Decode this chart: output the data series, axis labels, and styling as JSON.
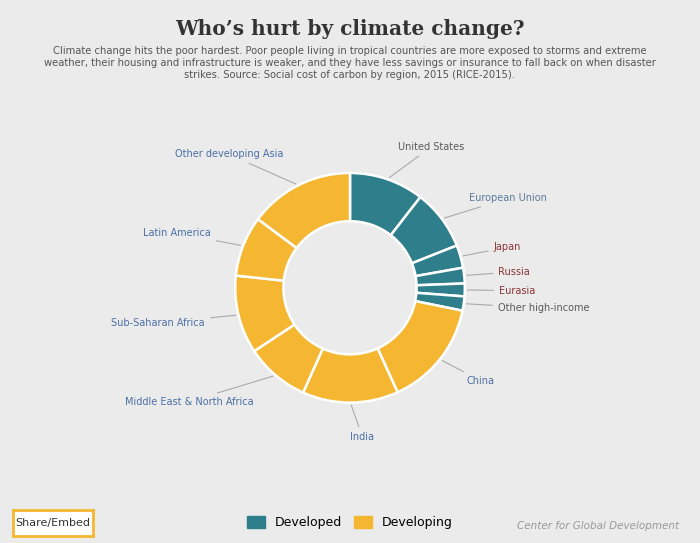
{
  "title": "Who’s hurt by climate change?",
  "subtitle_line1": "Climate change hits the poor hardest. Poor people living in tropical countries are more exposed to storms and extreme",
  "subtitle_line2": "weather, their housing and infrastructure is weaker, and they have less savings or insurance to fall back on when disaster",
  "subtitle_line3": "strikes. Source: Social cost of carbon by region, 2015 (RICE-2015).",
  "background_color": "#ebebeb",
  "developed_color": "#2e7f8b",
  "developing_color": "#f5b731",
  "wedge_edge_color": "#ffffff",
  "labels": [
    "United States",
    "European Union",
    "Japan",
    "Russia",
    "Eurasia",
    "Other high-income",
    "China",
    "India",
    "Middle East & North Africa",
    "Sub-Saharan Africa",
    "Latin America",
    "Other developing Asia"
  ],
  "values": [
    10.5,
    8.5,
    3.2,
    2.2,
    1.8,
    2.0,
    15.0,
    13.5,
    9.0,
    11.0,
    8.5,
    14.8
  ],
  "types": [
    "developed",
    "developed",
    "developed",
    "developed",
    "developed",
    "developed",
    "developing",
    "developing",
    "developing",
    "developing",
    "developing",
    "developing"
  ],
  "legend_developed": "Developed",
  "legend_developing": "Developing",
  "footer_left": "Share/Embed",
  "footer_right": "Center for Global Development"
}
